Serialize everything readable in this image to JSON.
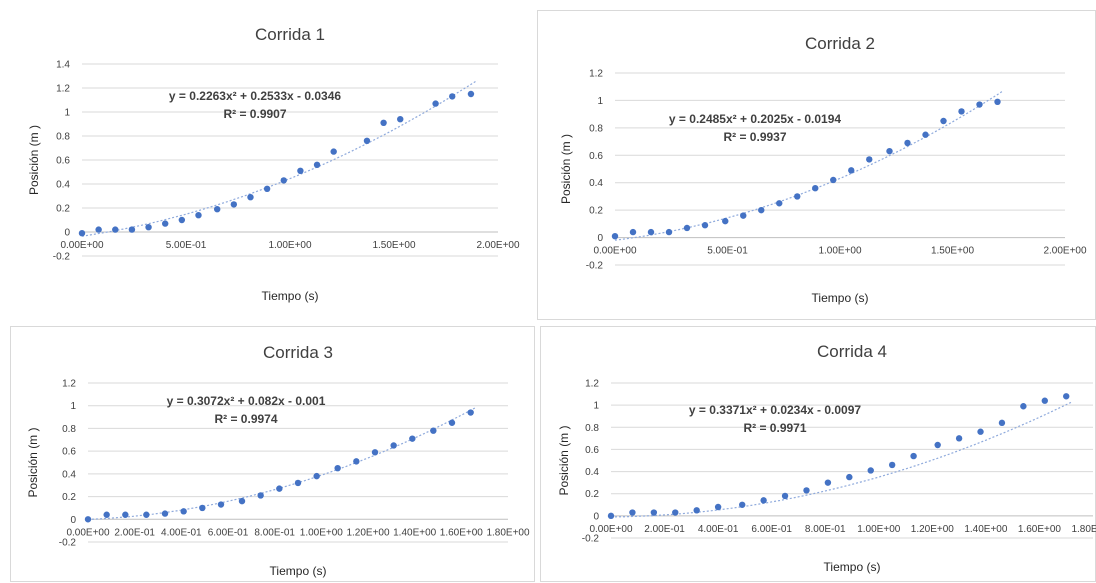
{
  "chart_data": [
    {
      "type": "scatter",
      "title": "Corrida 1",
      "xlabel": "Tiempo (s)",
      "ylabel": "Posición (m )",
      "xlim": [
        0,
        2
      ],
      "ylim": [
        -0.2,
        1.4
      ],
      "y_ticks": [
        "1.4",
        "1.2",
        "1",
        "0.8",
        "0.6",
        "0.4",
        "0.2",
        "0",
        "-0.2"
      ],
      "x_ticks": [
        "0.00E+00",
        "5.00E-01",
        "1.00E+00",
        "1.50E+00",
        "2.00E+00"
      ],
      "grid": true,
      "trendline": {
        "equation": "y = 0.2263x² + 0.2533x - 0.0346",
        "r2": "R² = 0.9907",
        "coef": [
          0.2263,
          0.2533,
          -0.0346
        ],
        "x_range": [
          0,
          1.9
        ]
      },
      "series": [
        {
          "x": [
            0,
            0.08,
            0.16,
            0.24,
            0.32,
            0.4,
            0.48,
            0.56,
            0.65,
            0.73,
            0.81,
            0.89,
            0.97,
            1.05,
            1.13,
            1.21,
            1.37,
            1.45,
            1.53,
            1.7,
            1.78,
            1.87
          ],
          "y": [
            -0.01,
            0.02,
            0.02,
            0.02,
            0.04,
            0.07,
            0.1,
            0.14,
            0.19,
            0.23,
            0.29,
            0.36,
            0.43,
            0.51,
            0.56,
            0.67,
            0.76,
            0.91,
            0.94,
            1.07,
            1.13,
            1.15
          ]
        }
      ]
    },
    {
      "type": "scatter",
      "title": "Corrida 2",
      "xlabel": "Tiempo (s)",
      "ylabel": "Posición (m )",
      "xlim": [
        0,
        2
      ],
      "ylim": [
        -0.2,
        1.2
      ],
      "y_ticks": [
        "1.2",
        "1",
        "0.8",
        "0.6",
        "0.4",
        "0.2",
        "0",
        "-0.2"
      ],
      "x_ticks": [
        "0.00E+00",
        "5.00E-01",
        "1.00E+00",
        "1.50E+00",
        "2.00E+00"
      ],
      "grid": true,
      "trendline": {
        "equation": "y = 0.2485x² + 0.2025x - 0.0194",
        "r2": "R² = 0.9937",
        "coef": [
          0.2485,
          0.2025,
          -0.0194
        ],
        "x_range": [
          0,
          1.72
        ]
      },
      "series": [
        {
          "x": [
            0,
            0.08,
            0.16,
            0.24,
            0.32,
            0.4,
            0.49,
            0.57,
            0.65,
            0.73,
            0.81,
            0.89,
            0.97,
            1.05,
            1.13,
            1.22,
            1.3,
            1.38,
            1.46,
            1.54,
            1.62,
            1.7
          ],
          "y": [
            0.01,
            0.04,
            0.04,
            0.04,
            0.07,
            0.09,
            0.12,
            0.16,
            0.2,
            0.25,
            0.3,
            0.36,
            0.42,
            0.49,
            0.57,
            0.63,
            0.69,
            0.75,
            0.85,
            0.92,
            0.97,
            0.99
          ]
        }
      ]
    },
    {
      "type": "scatter",
      "title": "Corrida 3",
      "xlabel": "Tiempo (s)",
      "ylabel": "Posición (m )",
      "xlim": [
        0,
        1.8
      ],
      "ylim": [
        -0.2,
        1.2
      ],
      "y_ticks": [
        "1.2",
        "1",
        "0.8",
        "0.6",
        "0.4",
        "0.2",
        "0",
        "-0.2"
      ],
      "x_ticks": [
        "0.00E+00",
        "2.00E-01",
        "4.00E-01",
        "6.00E-01",
        "8.00E-01",
        "1.00E+00",
        "1.20E+00",
        "1.40E+00",
        "1.60E+00",
        "1.80E+00"
      ],
      "x_tick_labels_visible": [
        "0.00E+00",
        "2.00E-01",
        "4.00E-01",
        "6.00E-01",
        "8.00E-01",
        "1.00E+00",
        "1.20E+00",
        "1.40E+00",
        "1.60E+00",
        "1.80E+00"
      ],
      "grid": true,
      "trendline": {
        "equation": "y = 0.3072x² + 0.082x - 0.001",
        "r2": "R² = 0.9974",
        "coef": [
          0.3072,
          0.082,
          -0.001
        ],
        "x_range": [
          0,
          1.66
        ]
      },
      "series": [
        {
          "x": [
            0,
            0.08,
            0.16,
            0.25,
            0.33,
            0.41,
            0.49,
            0.57,
            0.66,
            0.74,
            0.82,
            0.9,
            0.98,
            1.07,
            1.15,
            1.23,
            1.31,
            1.39,
            1.48,
            1.56,
            1.64
          ],
          "y": [
            0.0,
            0.04,
            0.04,
            0.04,
            0.05,
            0.07,
            0.1,
            0.13,
            0.16,
            0.21,
            0.27,
            0.32,
            0.38,
            0.45,
            0.51,
            0.59,
            0.65,
            0.71,
            0.78,
            0.85,
            0.94
          ]
        }
      ]
    },
    {
      "type": "scatter",
      "title": "Corrida 4",
      "xlabel": "Tiempo (s)",
      "ylabel": "Posición (m )",
      "xlim": [
        0,
        1.8
      ],
      "ylim": [
        -0.2,
        1.2
      ],
      "y_ticks": [
        "1.2",
        "1",
        "0.8",
        "0.6",
        "0.4",
        "0.2",
        "0",
        "-0.2"
      ],
      "x_ticks": [
        "0.00E+00",
        "2.00E-01",
        "4.00E-01",
        "6.00E-01",
        "8.00E-01",
        "1.00E+00",
        "1.20E+00",
        "1.40E+00",
        "1.60E+00",
        "1.80E+00"
      ],
      "grid": true,
      "trendline": {
        "equation": "y = 0.3371x² + 0.0234x - 0.0097",
        "r2": "R² = 0.9971",
        "coef": [
          0.3371,
          0.0234,
          -0.0097
        ],
        "x_range": [
          0,
          1.72
        ]
      },
      "series": [
        {
          "x": [
            0,
            0.08,
            0.16,
            0.24,
            0.32,
            0.4,
            0.49,
            0.57,
            0.65,
            0.73,
            0.81,
            0.89,
            0.97,
            1.05,
            1.13,
            1.22,
            1.3,
            1.38,
            1.46,
            1.54,
            1.62,
            1.7
          ],
          "y": [
            0.0,
            0.03,
            0.03,
            0.03,
            0.05,
            0.08,
            0.1,
            0.14,
            0.18,
            0.23,
            0.3,
            0.35,
            0.41,
            0.46,
            0.54,
            0.64,
            0.7,
            0.76,
            0.84,
            0.99,
            1.04,
            1.08
          ]
        }
      ]
    }
  ],
  "colors": {
    "marker": "#4472c4",
    "trendline": "#8faadc",
    "grid": "#d9d9d9"
  }
}
